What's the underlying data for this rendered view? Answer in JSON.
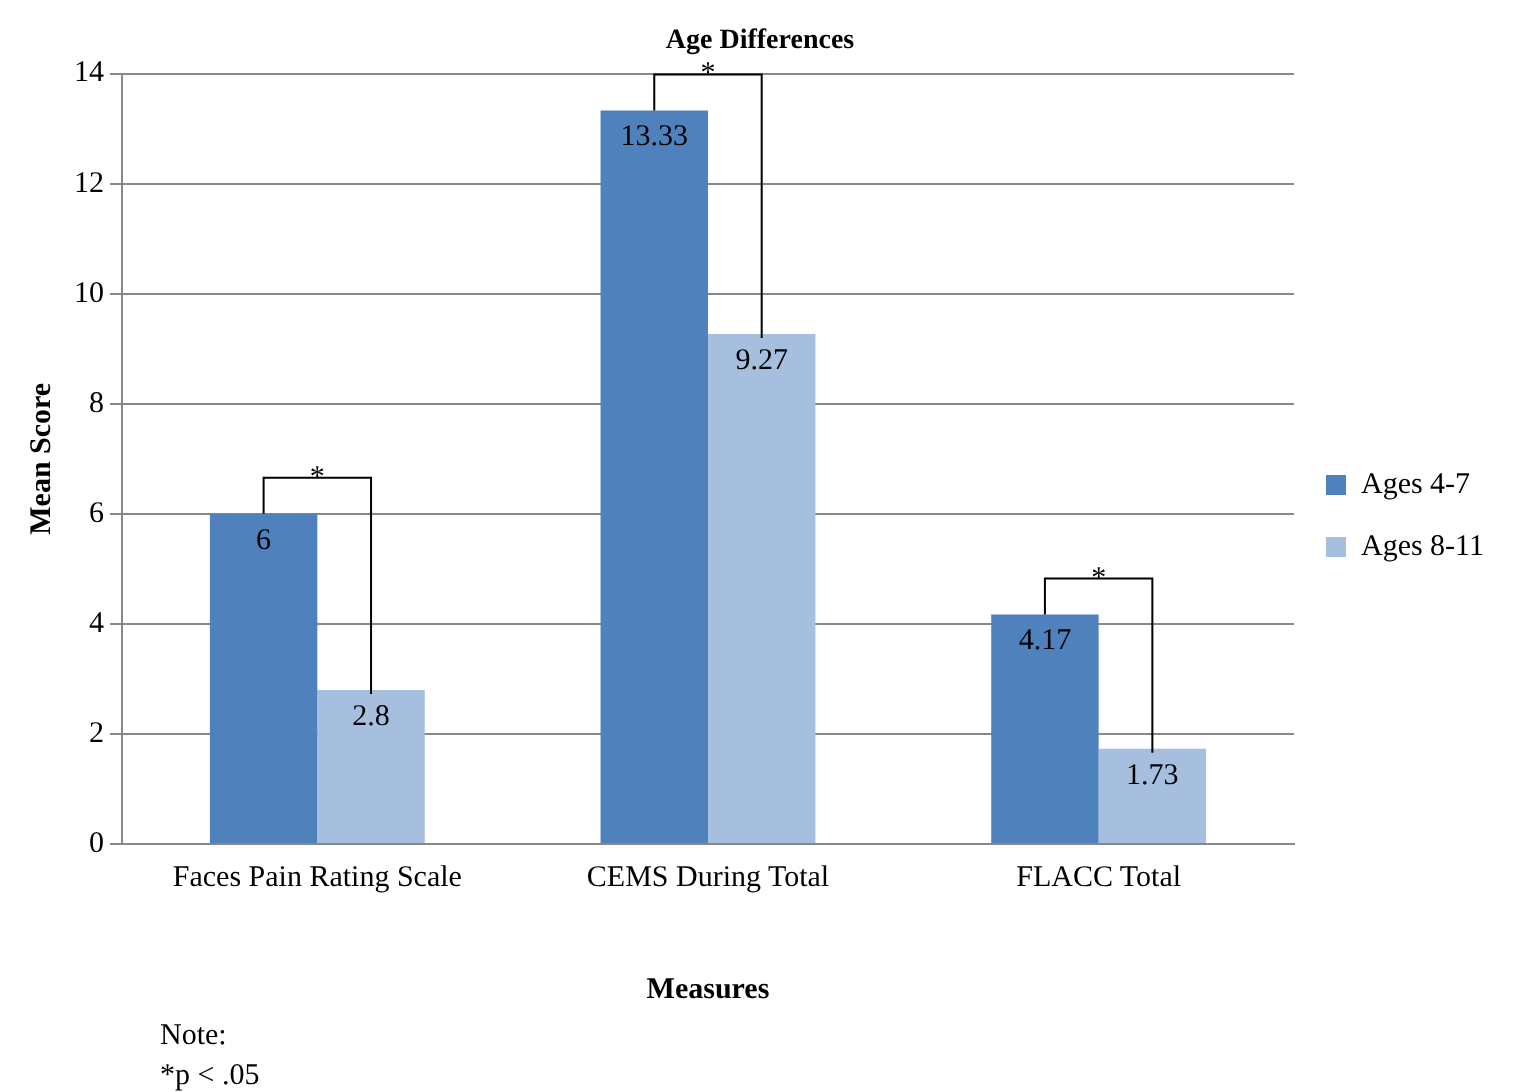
{
  "chart_data": {
    "type": "bar",
    "title": "Age Differences",
    "xlabel": "Measures",
    "ylabel": "Mean Score",
    "categories": [
      "Faces Pain Rating Scale",
      "CEMS During Total",
      "FLACC Total"
    ],
    "series": [
      {
        "name": "Ages 4-7",
        "color": "#4f81bd",
        "values": [
          6,
          13.33,
          4.17
        ]
      },
      {
        "name": "Ages 8-11",
        "color": "#a6bfdf",
        "values": [
          2.8,
          9.27,
          1.73
        ]
      }
    ],
    "ylim": [
      0,
      14
    ],
    "yticks": [
      0,
      2,
      4,
      6,
      8,
      10,
      12,
      14
    ],
    "grid": "y",
    "legend": "right",
    "data_labels": true,
    "annotations": [
      "*",
      "*",
      "*",
      "Note:",
      "*p < .05"
    ]
  }
}
